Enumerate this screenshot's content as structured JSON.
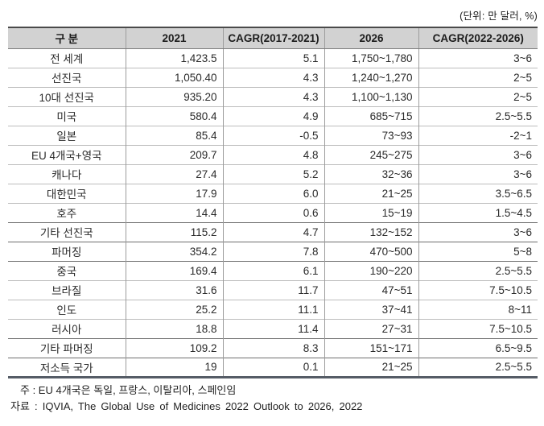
{
  "unit_note": "(단위: 만 달러, %)",
  "table": {
    "headers": [
      "구 분",
      "2021",
      "CAGR(2017-2021)",
      "2026",
      "CAGR(2022-2026)"
    ],
    "rows": [
      {
        "label": "전 세계",
        "y2021": "1,423.5",
        "cagr_2017_2021": "5.1",
        "y2026": "1,750~1,780",
        "cagr_2022_2026": "3~6",
        "sep_top": false
      },
      {
        "label": "선진국",
        "y2021": "1,050.40",
        "cagr_2017_2021": "4.3",
        "y2026": "1,240~1,270",
        "cagr_2022_2026": "2~5",
        "sep_top": false
      },
      {
        "label": "10대 선진국",
        "y2021": "935.20",
        "cagr_2017_2021": "4.3",
        "y2026": "1,100~1,130",
        "cagr_2022_2026": "2~5",
        "sep_top": false
      },
      {
        "label": "미국",
        "y2021": "580.4",
        "cagr_2017_2021": "4.9",
        "y2026": "685~715",
        "cagr_2022_2026": "2.5~5.5",
        "sep_top": false
      },
      {
        "label": "일본",
        "y2021": "85.4",
        "cagr_2017_2021": "-0.5",
        "y2026": "73~93",
        "cagr_2022_2026": "-2~1",
        "sep_top": false
      },
      {
        "label": "EU 4개국+영국",
        "y2021": "209.7",
        "cagr_2017_2021": "4.8",
        "y2026": "245~275",
        "cagr_2022_2026": "3~6",
        "sep_top": false
      },
      {
        "label": "캐나다",
        "y2021": "27.4",
        "cagr_2017_2021": "5.2",
        "y2026": "32~36",
        "cagr_2022_2026": "3~6",
        "sep_top": false
      },
      {
        "label": "대한민국",
        "y2021": "17.9",
        "cagr_2017_2021": "6.0",
        "y2026": "21~25",
        "cagr_2022_2026": "3.5~6.5",
        "sep_top": false
      },
      {
        "label": "호주",
        "y2021": "14.4",
        "cagr_2017_2021": "0.6",
        "y2026": "15~19",
        "cagr_2022_2026": "1.5~4.5",
        "sep_top": false
      },
      {
        "label": "기타 선진국",
        "y2021": "115.2",
        "cagr_2017_2021": "4.7",
        "y2026": "132~152",
        "cagr_2022_2026": "3~6",
        "sep_top": true
      },
      {
        "label": "파머징",
        "y2021": "354.2",
        "cagr_2017_2021": "7.8",
        "y2026": "470~500",
        "cagr_2022_2026": "5~8",
        "sep_top": true
      },
      {
        "label": "중국",
        "y2021": "169.4",
        "cagr_2017_2021": "6.1",
        "y2026": "190~220",
        "cagr_2022_2026": "2.5~5.5",
        "sep_top": true
      },
      {
        "label": "브라질",
        "y2021": "31.6",
        "cagr_2017_2021": "11.7",
        "y2026": "47~51",
        "cagr_2022_2026": "7.5~10.5",
        "sep_top": false
      },
      {
        "label": "인도",
        "y2021": "25.2",
        "cagr_2017_2021": "11.1",
        "y2026": "37~41",
        "cagr_2022_2026": "8~11",
        "sep_top": false
      },
      {
        "label": "러시아",
        "y2021": "18.8",
        "cagr_2017_2021": "11.4",
        "y2026": "27~31",
        "cagr_2022_2026": "7.5~10.5",
        "sep_top": false
      },
      {
        "label": "기타 파머징",
        "y2021": "109.2",
        "cagr_2017_2021": "8.3",
        "y2026": "151~171",
        "cagr_2022_2026": "6.5~9.5",
        "sep_top": true
      },
      {
        "label": "저소득 국가",
        "y2021": "19",
        "cagr_2017_2021": "0.1",
        "y2026": "21~25",
        "cagr_2022_2026": "2.5~5.5",
        "sep_top": true
      }
    ]
  },
  "footnotes": {
    "note": "주 : EU 4개국은 독일, 프랑스, 이탈리아, 스페인임",
    "source": "자료 : IQVIA, The Global Use of Medicines 2022 Outlook to 2026, 2022"
  }
}
